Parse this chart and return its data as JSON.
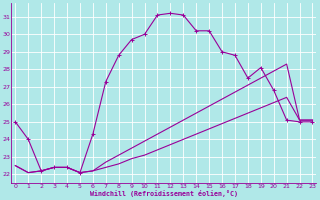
{
  "xlabel": "Windchill (Refroidissement éolien,°C)",
  "bg_color": "#b0e8e8",
  "grid_color": "#c8e8e8",
  "line_color": "#990099",
  "xlim": [
    -0.3,
    23.3
  ],
  "ylim": [
    21.5,
    31.8
  ],
  "yticks": [
    22,
    23,
    24,
    25,
    26,
    27,
    28,
    29,
    30,
    31
  ],
  "xticks": [
    0,
    1,
    2,
    3,
    4,
    5,
    6,
    7,
    8,
    9,
    10,
    11,
    12,
    13,
    14,
    15,
    16,
    17,
    18,
    19,
    20,
    21,
    22,
    23
  ],
  "curve1_x": [
    0,
    1,
    2,
    3,
    4,
    5,
    6,
    7,
    8,
    9,
    10,
    11,
    12,
    13,
    14,
    15,
    16,
    17,
    18,
    19,
    20,
    21,
    22,
    23
  ],
  "curve1_y": [
    25.0,
    24.0,
    22.2,
    22.4,
    22.4,
    22.1,
    24.3,
    27.3,
    28.8,
    29.7,
    30.0,
    31.1,
    31.2,
    31.1,
    30.2,
    30.2,
    29.0,
    28.8,
    27.5,
    28.1,
    26.8,
    25.1,
    25.0,
    25.0
  ],
  "curve2_x": [
    0,
    1,
    2,
    3,
    4,
    5,
    6,
    7,
    8,
    9,
    10,
    11,
    12,
    13,
    14,
    15,
    16,
    17,
    18,
    19,
    20,
    21,
    22,
    23
  ],
  "curve2_y": [
    22.5,
    22.1,
    22.2,
    22.4,
    22.4,
    22.1,
    22.2,
    22.7,
    23.1,
    23.5,
    23.9,
    24.3,
    24.7,
    25.1,
    25.5,
    25.9,
    26.3,
    26.7,
    27.1,
    27.5,
    27.9,
    28.3,
    25.1,
    25.1
  ],
  "curve3_x": [
    0,
    1,
    2,
    3,
    4,
    5,
    6,
    7,
    8,
    9,
    10,
    11,
    12,
    13,
    14,
    15,
    16,
    17,
    18,
    19,
    20,
    21,
    22,
    23
  ],
  "curve3_y": [
    22.5,
    22.1,
    22.2,
    22.4,
    22.4,
    22.1,
    22.2,
    22.4,
    22.6,
    22.9,
    23.1,
    23.4,
    23.7,
    24.0,
    24.3,
    24.6,
    24.9,
    25.2,
    25.5,
    25.8,
    26.1,
    26.4,
    25.1,
    25.1
  ]
}
